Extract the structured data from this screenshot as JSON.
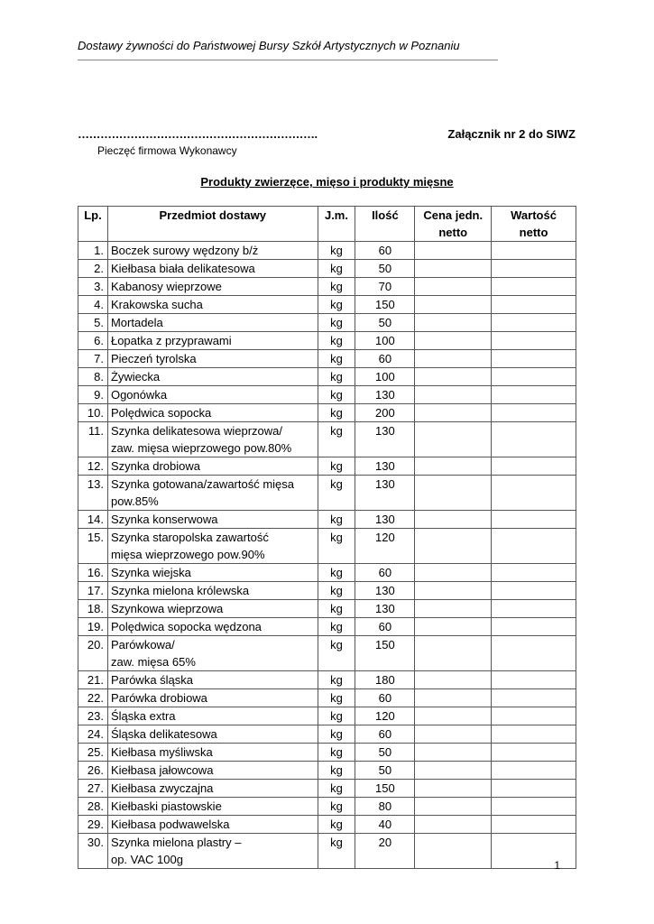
{
  "header": {
    "text": "Dostawy żywności do Państwowej Bursy Szkół Artystycznych w Poznaniu"
  },
  "stamp": {
    "dots": "……………………………………………………….",
    "label": "Pieczęć firmowa Wykonawcy"
  },
  "annex": "Załącznik nr 2 do SIWZ",
  "title": "Produkty zwierzęce, mięso i produkty mięsne",
  "table": {
    "columns": [
      "Lp.",
      "Przedmiot dostawy",
      "J.m.",
      "Ilość",
      "Cena jedn.\nnetto",
      "Wartość\nnetto"
    ],
    "rows": [
      {
        "lp": "1.",
        "name": "Boczek surowy wędzony b/ż",
        "unit": "kg",
        "qty": "60"
      },
      {
        "lp": "2.",
        "name": "Kiełbasa biała delikatesowa",
        "unit": "kg",
        "qty": "50"
      },
      {
        "lp": "3.",
        "name": "Kabanosy wieprzowe",
        "unit": "kg",
        "qty": "70"
      },
      {
        "lp": "4.",
        "name": "Krakowska sucha",
        "unit": "kg",
        "qty": "150"
      },
      {
        "lp": "5.",
        "name": "Mortadela",
        "unit": "kg",
        "qty": "50"
      },
      {
        "lp": "6.",
        "name": "Łopatka z przyprawami",
        "unit": "kg",
        "qty": "100"
      },
      {
        "lp": "7.",
        "name": "Pieczeń tyrolska",
        "unit": "kg",
        "qty": "60"
      },
      {
        "lp": "8.",
        "name": "Żywiecka",
        "unit": "kg",
        "qty": "100"
      },
      {
        "lp": "9.",
        "name": "Ogonówka",
        "unit": "kg",
        "qty": "130"
      },
      {
        "lp": "10.",
        "name": "Polędwica sopocka",
        "unit": "kg",
        "qty": "200"
      },
      {
        "lp": "11.",
        "name": "Szynka delikatesowa wieprzowa/\nzaw. mięsa wieprzowego pow.80%",
        "unit": "kg",
        "qty": "130"
      },
      {
        "lp": "12.",
        "name": "Szynka drobiowa",
        "unit": "kg",
        "qty": "130"
      },
      {
        "lp": "13.",
        "name": "Szynka gotowana/zawartość mięsa\npow.85%",
        "unit": "kg",
        "qty": "130"
      },
      {
        "lp": "14.",
        "name": "Szynka konserwowa",
        "unit": "kg",
        "qty": "130"
      },
      {
        "lp": "15.",
        "name": "Szynka staropolska zawartość\nmięsa wieprzowego pow.90%",
        "unit": "kg",
        "qty": "120"
      },
      {
        "lp": "16.",
        "name": "Szynka wiejska",
        "unit": "kg",
        "qty": "60"
      },
      {
        "lp": "17.",
        "name": "Szynka mielona królewska",
        "unit": "kg",
        "qty": "130"
      },
      {
        "lp": "18.",
        "name": "Szynkowa wieprzowa",
        "unit": "kg",
        "qty": "130"
      },
      {
        "lp": "19.",
        "name": "Polędwica sopocka wędzona",
        "unit": "kg",
        "qty": "60"
      },
      {
        "lp": "20.",
        "name": "Parówkowa/\nzaw. mięsa 65%",
        "unit": "kg",
        "qty": "150"
      },
      {
        "lp": "21.",
        "name": "Parówka śląska",
        "unit": "kg",
        "qty": "180"
      },
      {
        "lp": "22.",
        "name": "Parówka drobiowa",
        "unit": "kg",
        "qty": "60"
      },
      {
        "lp": "23.",
        "name": "Śląska extra",
        "unit": "kg",
        "qty": "120"
      },
      {
        "lp": "24.",
        "name": "Śląska delikatesowa",
        "unit": "kg",
        "qty": "60"
      },
      {
        "lp": "25.",
        "name": "Kiełbasa myśliwska",
        "unit": "kg",
        "qty": "50"
      },
      {
        "lp": "26.",
        "name": "Kiełbasa jałowcowa",
        "unit": "kg",
        "qty": "50"
      },
      {
        "lp": "27.",
        "name": "Kiełbasa zwyczajna",
        "unit": "kg",
        "qty": "150"
      },
      {
        "lp": "28.",
        "name": "Kiełbaski piastowskie",
        "unit": "kg",
        "qty": "80"
      },
      {
        "lp": "29.",
        "name": "Kiełbasa podwawelska",
        "unit": "kg",
        "qty": "40"
      },
      {
        "lp": "30.",
        "name": "Szynka mielona plastry –\nop. VAC 100g",
        "unit": "kg",
        "qty": "20"
      }
    ]
  },
  "page_number": "1"
}
